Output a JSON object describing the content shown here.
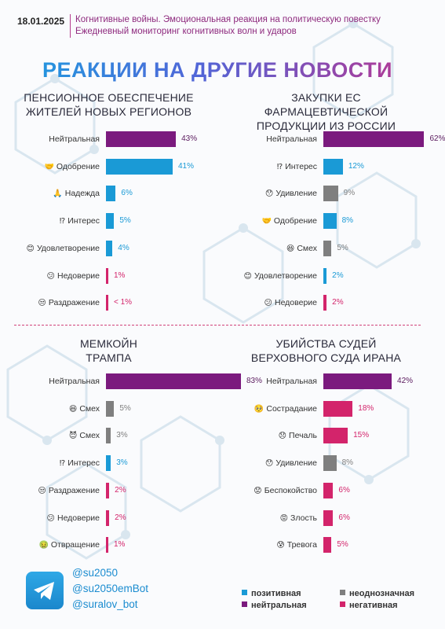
{
  "header": {
    "date": "18.01.2025",
    "line1": "Когнитивные войны. Эмоциональная реакция на политическую повестку",
    "line2": "Ежедневный мониторинг когнитивных волн и ударов"
  },
  "title": "РЕАКЦИИ НА ДРУГИЕ НОВОСТИ",
  "colors": {
    "positive": "#1a9ad6",
    "neutral": "#7b1a7e",
    "ambiguous": "#7f7f7f",
    "negative": "#d3246b"
  },
  "chart_data": [
    {
      "type": "bar",
      "title": "ПЕНСИОННОЕ ОБЕСПЕЧЕНИЕ\nЖИТЕЛЕЙ НОВЫХ РЕГИОНОВ",
      "categories": [
        "Нейтральная",
        "Одобрение",
        "Надежда",
        "Интерес",
        "Удовлетворение",
        "Недоверие",
        "Раздражение"
      ],
      "icons": [
        "",
        "handshake-icon",
        "praying-hands-icon",
        "exclamation-question-icon",
        "smile-icon",
        "confused-face-icon",
        "annoyed-face-icon"
      ],
      "values": [
        43,
        41,
        6,
        5,
        4,
        1,
        0.5
      ],
      "labels": [
        "43%",
        "41%",
        "6%",
        "5%",
        "4%",
        "1%",
        "< 1%"
      ],
      "groups": [
        "neutral",
        "positive",
        "positive",
        "positive",
        "positive",
        "negative",
        "negative"
      ]
    },
    {
      "type": "bar",
      "title": "ЗАКУПКИ ЕС\nФАРМАЦЕВТИЧЕСКОЙ\nПРОДУКЦИИ ИЗ РОССИИ",
      "categories": [
        "Нейтральная",
        "Интерес",
        "Удивление",
        "Одобрение",
        "Смех",
        "Удовлетворение",
        "Недоверие"
      ],
      "icons": [
        "",
        "exclamation-question-icon",
        "surprised-face-icon",
        "handshake-icon",
        "laughing-face-icon",
        "smile-icon",
        "confused-face-icon"
      ],
      "values": [
        62,
        12,
        9,
        8,
        5,
        2,
        2
      ],
      "labels": [
        "62%",
        "12%",
        "9%",
        "8%",
        "5%",
        "2%",
        "2%"
      ],
      "groups": [
        "neutral",
        "positive",
        "ambiguous",
        "positive",
        "ambiguous",
        "positive",
        "negative"
      ]
    },
    {
      "type": "bar",
      "title": "МЕМКОЙН\nТРАМПА",
      "categories": [
        "Нейтральная",
        "Смех",
        "Смех",
        "Интерес",
        "Раздражение",
        "Недоверие",
        "Отвращение"
      ],
      "icons": [
        "",
        "laughing-face-icon",
        "devil-face-icon",
        "exclamation-question-icon",
        "annoyed-face-icon",
        "confused-face-icon",
        "disgust-face-icon"
      ],
      "values": [
        83,
        5,
        3,
        3,
        2,
        2,
        1
      ],
      "labels": [
        "83%",
        "5%",
        "3%",
        "3%",
        "2%",
        "2%",
        "1%"
      ],
      "groups": [
        "neutral",
        "ambiguous",
        "ambiguous",
        "positive",
        "negative",
        "negative",
        "negative"
      ]
    },
    {
      "type": "bar",
      "title": "УБИЙСТВА СУДЕЙ\nВЕРХОВНОГО СУДА ИРАНА",
      "categories": [
        "Нейтральная",
        "Сострадание",
        "Печаль",
        "Удивление",
        "Беспокойство",
        "Злость",
        "Тревога"
      ],
      "icons": [
        "",
        "hug-face-icon",
        "sad-face-icon",
        "surprised-face-icon",
        "worried-face-icon",
        "angry-face-icon",
        "anxious-face-icon"
      ],
      "values": [
        42,
        18,
        15,
        8,
        6,
        6,
        5
      ],
      "labels": [
        "42%",
        "18%",
        "15%",
        "8%",
        "6%",
        "6%",
        "5%"
      ],
      "groups": [
        "neutral",
        "negative",
        "negative",
        "ambiguous",
        "negative",
        "negative",
        "negative"
      ]
    }
  ],
  "footer": {
    "handles": [
      "@su2050",
      "@su2050emBot",
      "@suralov_bot"
    ],
    "legend": {
      "positive": "позитивная",
      "neutral": "нейтральная",
      "ambiguous": "неоднозначная",
      "negative": "негативная"
    }
  }
}
